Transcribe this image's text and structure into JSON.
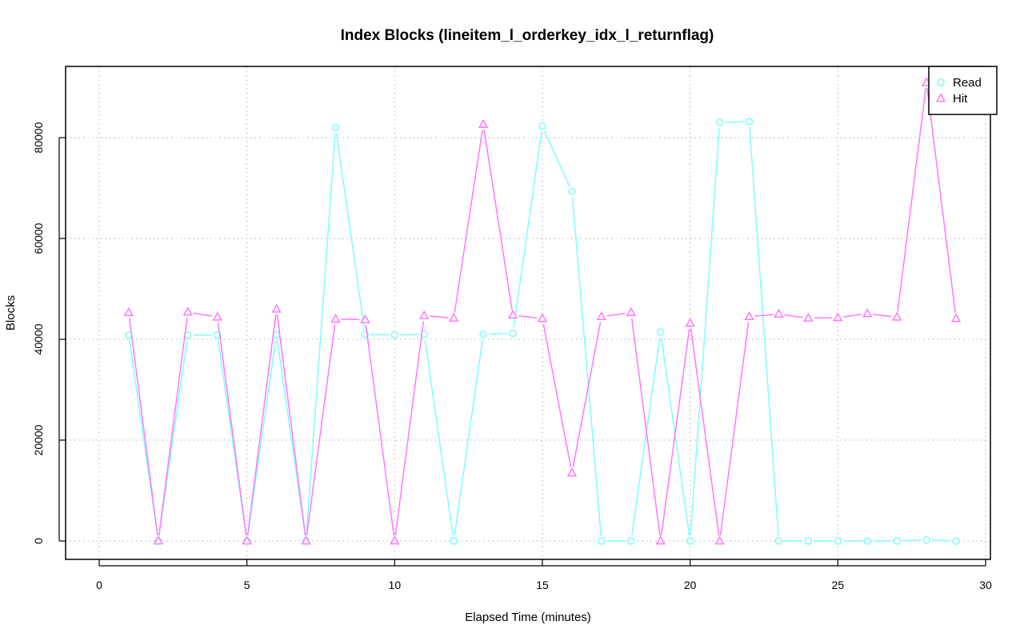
{
  "chart_data": {
    "type": "line",
    "title": "Index Blocks (lineitem_l_orderkey_idx_l_returnflag)",
    "xlabel": "Elapsed Time (minutes)",
    "ylabel": "Blocks",
    "xlim": [
      0,
      30
    ],
    "ylim": [
      0,
      90000
    ],
    "xticks": [
      0,
      5,
      10,
      15,
      20,
      25,
      30
    ],
    "yticks": [
      0,
      20000,
      40000,
      60000,
      80000
    ],
    "grid": true,
    "legend_position": "top-right",
    "x": [
      1,
      2,
      3,
      4,
      5,
      6,
      7,
      8,
      9,
      10,
      11,
      12,
      13,
      14,
      15,
      16,
      17,
      18,
      19,
      20,
      21,
      22,
      23,
      24,
      25,
      26,
      27,
      28,
      29
    ],
    "series": [
      {
        "name": "Read",
        "color": "#7ffcfc",
        "marker": "circle",
        "values": [
          40800,
          0,
          40800,
          40900,
          0,
          40900,
          0,
          82000,
          41000,
          40900,
          41000,
          0,
          41000,
          41200,
          82300,
          69300,
          0,
          0,
          41400,
          0,
          83000,
          83200,
          0,
          0,
          0,
          0,
          0,
          200,
          0
        ]
      },
      {
        "name": "Hit",
        "color": "#ff77ff",
        "marker": "triangle",
        "values": [
          45300,
          0,
          45400,
          44400,
          0,
          46000,
          0,
          44000,
          43900,
          0,
          44700,
          44200,
          82600,
          44800,
          44100,
          13500,
          44500,
          45300,
          0,
          43200,
          0,
          44500,
          45000,
          44200,
          44300,
          45100,
          44400,
          90900,
          44100
        ]
      }
    ]
  }
}
